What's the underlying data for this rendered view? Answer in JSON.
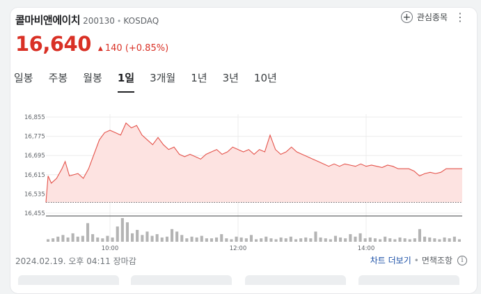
{
  "stock": {
    "name": "콜마비앤에이치",
    "code": "200130",
    "separator": "•",
    "market": "KOSDAQ",
    "price": "16,640",
    "change": "140",
    "change_pct": "(+0.85%)",
    "up_color": "#d93025"
  },
  "watch": {
    "label": "관심종목",
    "icon": "plus-icon"
  },
  "tabs": [
    {
      "label": "일봉",
      "active": false
    },
    {
      "label": "주봉",
      "active": false
    },
    {
      "label": "월봉",
      "active": false
    },
    {
      "label": "1일",
      "active": true
    },
    {
      "label": "3개월",
      "active": false
    },
    {
      "label": "1년",
      "active": false
    },
    {
      "label": "3년",
      "active": false
    },
    {
      "label": "10년",
      "active": false
    }
  ],
  "footer": {
    "timestamp": "2024.02.19. 오후 04:11 장마감",
    "more_chart": "차트 더보기",
    "separator": "•",
    "disclaimer": "면책조항",
    "info_icon": "i"
  },
  "chart_data": {
    "type": "line",
    "ylim": [
      16455,
      16855
    ],
    "yticks": [
      16455,
      16535,
      16615,
      16695,
      16775,
      16855
    ],
    "ytick_labels": [
      "16,455",
      "16,535",
      "16,615",
      "16,695",
      "16,775",
      "16,855"
    ],
    "xticks": [
      "10:00",
      "12:00",
      "14:00"
    ],
    "session": [
      "09:00",
      "15:30"
    ],
    "prev_close": 16500,
    "line_color": "#e4524a",
    "fill_color": "#fde3e1",
    "series": [
      {
        "t": "09:00",
        "v": 16500
      },
      {
        "t": "09:02",
        "v": 16610
      },
      {
        "t": "09:05",
        "v": 16580
      },
      {
        "t": "09:10",
        "v": 16600
      },
      {
        "t": "09:15",
        "v": 16640
      },
      {
        "t": "09:18",
        "v": 16670
      },
      {
        "t": "09:22",
        "v": 16610
      },
      {
        "t": "09:30",
        "v": 16620
      },
      {
        "t": "09:35",
        "v": 16600
      },
      {
        "t": "09:40",
        "v": 16640
      },
      {
        "t": "09:45",
        "v": 16700
      },
      {
        "t": "09:50",
        "v": 16760
      },
      {
        "t": "09:55",
        "v": 16790
      },
      {
        "t": "10:00",
        "v": 16800
      },
      {
        "t": "10:05",
        "v": 16790
      },
      {
        "t": "10:10",
        "v": 16780
      },
      {
        "t": "10:15",
        "v": 16830
      },
      {
        "t": "10:20",
        "v": 16810
      },
      {
        "t": "10:25",
        "v": 16820
      },
      {
        "t": "10:30",
        "v": 16780
      },
      {
        "t": "10:35",
        "v": 16760
      },
      {
        "t": "10:40",
        "v": 16740
      },
      {
        "t": "10:45",
        "v": 16770
      },
      {
        "t": "10:50",
        "v": 16740
      },
      {
        "t": "10:55",
        "v": 16720
      },
      {
        "t": "11:00",
        "v": 16730
      },
      {
        "t": "11:05",
        "v": 16700
      },
      {
        "t": "11:10",
        "v": 16690
      },
      {
        "t": "11:15",
        "v": 16700
      },
      {
        "t": "11:20",
        "v": 16690
      },
      {
        "t": "11:25",
        "v": 16680
      },
      {
        "t": "11:30",
        "v": 16700
      },
      {
        "t": "11:35",
        "v": 16710
      },
      {
        "t": "11:40",
        "v": 16720
      },
      {
        "t": "11:45",
        "v": 16700
      },
      {
        "t": "11:50",
        "v": 16710
      },
      {
        "t": "11:55",
        "v": 16730
      },
      {
        "t": "12:00",
        "v": 16720
      },
      {
        "t": "12:05",
        "v": 16710
      },
      {
        "t": "12:10",
        "v": 16720
      },
      {
        "t": "12:15",
        "v": 16700
      },
      {
        "t": "12:20",
        "v": 16720
      },
      {
        "t": "12:25",
        "v": 16710
      },
      {
        "t": "12:30",
        "v": 16780
      },
      {
        "t": "12:35",
        "v": 16720
      },
      {
        "t": "12:40",
        "v": 16700
      },
      {
        "t": "12:45",
        "v": 16710
      },
      {
        "t": "12:50",
        "v": 16730
      },
      {
        "t": "12:55",
        "v": 16710
      },
      {
        "t": "13:00",
        "v": 16700
      },
      {
        "t": "13:05",
        "v": 16690
      },
      {
        "t": "13:10",
        "v": 16680
      },
      {
        "t": "13:15",
        "v": 16670
      },
      {
        "t": "13:20",
        "v": 16660
      },
      {
        "t": "13:25",
        "v": 16650
      },
      {
        "t": "13:30",
        "v": 16660
      },
      {
        "t": "13:35",
        "v": 16650
      },
      {
        "t": "13:40",
        "v": 16660
      },
      {
        "t": "13:45",
        "v": 16655
      },
      {
        "t": "13:50",
        "v": 16650
      },
      {
        "t": "13:55",
        "v": 16660
      },
      {
        "t": "14:00",
        "v": 16650
      },
      {
        "t": "14:05",
        "v": 16655
      },
      {
        "t": "14:10",
        "v": 16650
      },
      {
        "t": "14:15",
        "v": 16645
      },
      {
        "t": "14:20",
        "v": 16655
      },
      {
        "t": "14:25",
        "v": 16650
      },
      {
        "t": "14:30",
        "v": 16640
      },
      {
        "t": "14:35",
        "v": 16640
      },
      {
        "t": "14:40",
        "v": 16640
      },
      {
        "t": "14:45",
        "v": 16630
      },
      {
        "t": "14:50",
        "v": 16610
      },
      {
        "t": "14:55",
        "v": 16620
      },
      {
        "t": "15:00",
        "v": 16625
      },
      {
        "t": "15:05",
        "v": 16620
      },
      {
        "t": "15:10",
        "v": 16625
      },
      {
        "t": "15:15",
        "v": 16640
      },
      {
        "t": "15:20",
        "v": 16640
      },
      {
        "t": "15:30",
        "v": 16640
      }
    ],
    "volume": [
      3,
      4,
      6,
      8,
      5,
      10,
      6,
      7,
      22,
      9,
      5,
      4,
      7,
      5,
      18,
      28,
      23,
      10,
      14,
      8,
      12,
      7,
      9,
      5,
      6,
      15,
      12,
      8,
      4,
      6,
      5,
      7,
      4,
      4,
      5,
      9,
      4,
      3,
      6,
      5,
      4,
      8,
      3,
      4,
      6,
      4,
      3,
      5,
      4,
      6,
      3,
      4,
      5,
      4,
      12,
      5,
      4,
      3,
      7,
      5,
      4,
      9,
      6,
      10,
      4,
      5,
      4,
      3,
      6,
      4,
      3,
      5,
      4,
      3,
      4,
      15,
      6,
      5,
      4,
      3,
      5,
      4,
      6,
      3
    ]
  }
}
